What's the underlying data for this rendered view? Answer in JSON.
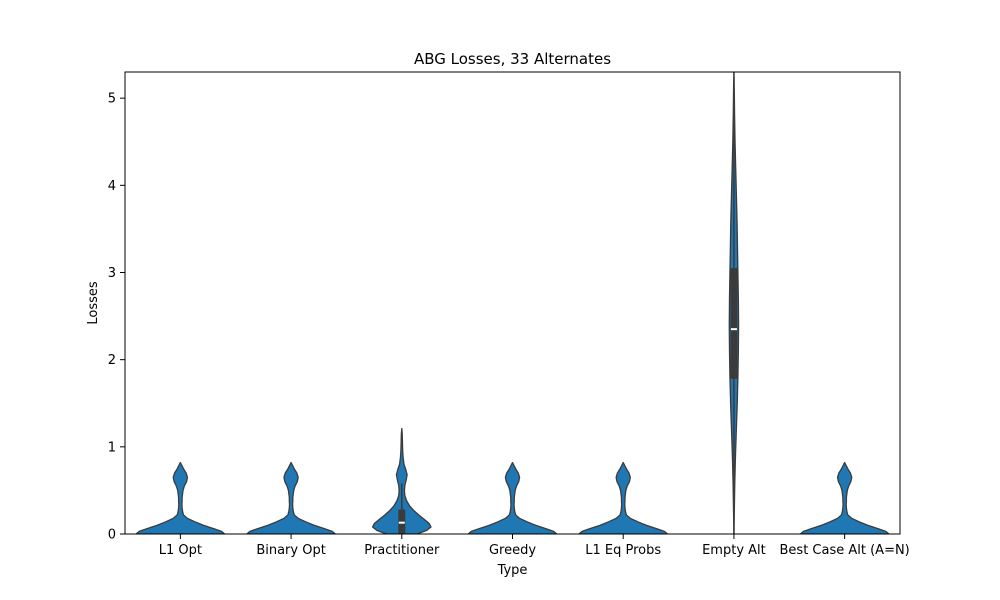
{
  "chart_data": {
    "type": "violin",
    "title": "ABG Losses, 33 Alternates",
    "xlabel": "Type",
    "ylabel": "Losses",
    "ylim": [
      0,
      5.3
    ],
    "yticks": [
      0,
      1,
      2,
      3,
      4,
      5
    ],
    "grid": false,
    "legend": "none",
    "colors": {
      "violin": "#1f77b4",
      "outline": "#3b3b3b",
      "box": "#3b3b3b",
      "median": "#ffffff"
    },
    "categories": [
      "L1 Opt",
      "Binary Opt",
      "Practitioner",
      "Greedy",
      "L1 Eq Probs",
      "Empty Alt",
      "Best Case Alt (A=N)"
    ],
    "violins": [
      {
        "category": "L1 Opt",
        "density": [
          [
            0,
            1.0
          ],
          [
            0.03,
            0.93
          ],
          [
            0.06,
            0.76
          ],
          [
            0.1,
            0.52
          ],
          [
            0.14,
            0.33
          ],
          [
            0.18,
            0.16
          ],
          [
            0.22,
            0.07
          ],
          [
            0.26,
            0.05
          ],
          [
            0.3,
            0.04
          ],
          [
            0.34,
            0.035
          ],
          [
            0.38,
            0.04
          ],
          [
            0.42,
            0.04
          ],
          [
            0.46,
            0.05
          ],
          [
            0.5,
            0.06
          ],
          [
            0.55,
            0.09
          ],
          [
            0.6,
            0.14
          ],
          [
            0.65,
            0.16
          ],
          [
            0.7,
            0.13
          ],
          [
            0.74,
            0.08
          ],
          [
            0.77,
            0.05
          ],
          [
            0.8,
            0.02
          ],
          [
            0.82,
            0.0
          ]
        ],
        "box": {
          "q1": 0.0,
          "median": 0.0,
          "q3": 0.0,
          "whisker_low": 0.0,
          "whisker_high": 0.0
        }
      },
      {
        "category": "Binary Opt",
        "density": [
          [
            0,
            1.0
          ],
          [
            0.03,
            0.93
          ],
          [
            0.06,
            0.76
          ],
          [
            0.1,
            0.52
          ],
          [
            0.14,
            0.33
          ],
          [
            0.18,
            0.16
          ],
          [
            0.22,
            0.07
          ],
          [
            0.26,
            0.05
          ],
          [
            0.3,
            0.04
          ],
          [
            0.34,
            0.035
          ],
          [
            0.38,
            0.04
          ],
          [
            0.42,
            0.04
          ],
          [
            0.46,
            0.05
          ],
          [
            0.5,
            0.06
          ],
          [
            0.55,
            0.09
          ],
          [
            0.6,
            0.14
          ],
          [
            0.65,
            0.16
          ],
          [
            0.7,
            0.13
          ],
          [
            0.74,
            0.08
          ],
          [
            0.77,
            0.05
          ],
          [
            0.8,
            0.02
          ],
          [
            0.82,
            0.0
          ]
        ],
        "box": {
          "q1": 0.0,
          "median": 0.0,
          "q3": 0.0,
          "whisker_low": 0.0,
          "whisker_high": 0.0
        }
      },
      {
        "category": "Practitioner",
        "density": [
          [
            0,
            0.34
          ],
          [
            0.04,
            0.56
          ],
          [
            0.08,
            0.66
          ],
          [
            0.12,
            0.62
          ],
          [
            0.17,
            0.5
          ],
          [
            0.22,
            0.38
          ],
          [
            0.27,
            0.27
          ],
          [
            0.32,
            0.18
          ],
          [
            0.38,
            0.11
          ],
          [
            0.44,
            0.07
          ],
          [
            0.5,
            0.06
          ],
          [
            0.56,
            0.07
          ],
          [
            0.62,
            0.1
          ],
          [
            0.68,
            0.12
          ],
          [
            0.74,
            0.09
          ],
          [
            0.8,
            0.05
          ],
          [
            0.88,
            0.03
          ],
          [
            0.96,
            0.02
          ],
          [
            1.05,
            0.015
          ],
          [
            1.15,
            0.01
          ],
          [
            1.21,
            0.0
          ]
        ],
        "box": {
          "q1": 0.0,
          "median": 0.13,
          "q3": 0.28,
          "whisker_low": 0.0,
          "whisker_high": 0.58
        }
      },
      {
        "category": "Greedy",
        "density": [
          [
            0,
            1.0
          ],
          [
            0.03,
            0.93
          ],
          [
            0.06,
            0.76
          ],
          [
            0.1,
            0.52
          ],
          [
            0.14,
            0.33
          ],
          [
            0.18,
            0.16
          ],
          [
            0.22,
            0.07
          ],
          [
            0.26,
            0.05
          ],
          [
            0.3,
            0.04
          ],
          [
            0.34,
            0.035
          ],
          [
            0.38,
            0.04
          ],
          [
            0.42,
            0.04
          ],
          [
            0.46,
            0.05
          ],
          [
            0.5,
            0.06
          ],
          [
            0.55,
            0.09
          ],
          [
            0.6,
            0.14
          ],
          [
            0.65,
            0.16
          ],
          [
            0.7,
            0.13
          ],
          [
            0.74,
            0.08
          ],
          [
            0.77,
            0.05
          ],
          [
            0.8,
            0.02
          ],
          [
            0.82,
            0.0
          ]
        ],
        "box": {
          "q1": 0.0,
          "median": 0.0,
          "q3": 0.0,
          "whisker_low": 0.0,
          "whisker_high": 0.0
        }
      },
      {
        "category": "L1 Eq Probs",
        "density": [
          [
            0,
            1.0
          ],
          [
            0.03,
            0.93
          ],
          [
            0.06,
            0.76
          ],
          [
            0.1,
            0.52
          ],
          [
            0.14,
            0.33
          ],
          [
            0.18,
            0.16
          ],
          [
            0.22,
            0.07
          ],
          [
            0.26,
            0.05
          ],
          [
            0.3,
            0.04
          ],
          [
            0.34,
            0.035
          ],
          [
            0.38,
            0.04
          ],
          [
            0.42,
            0.04
          ],
          [
            0.46,
            0.05
          ],
          [
            0.5,
            0.06
          ],
          [
            0.55,
            0.09
          ],
          [
            0.6,
            0.14
          ],
          [
            0.65,
            0.16
          ],
          [
            0.7,
            0.13
          ],
          [
            0.74,
            0.08
          ],
          [
            0.77,
            0.05
          ],
          [
            0.8,
            0.02
          ],
          [
            0.82,
            0.0
          ]
        ],
        "box": {
          "q1": 0.0,
          "median": 0.0,
          "q3": 0.0,
          "whisker_low": 0.0,
          "whisker_high": 0.0
        }
      },
      {
        "category": "Empty Alt",
        "density": [
          [
            0,
            0.0
          ],
          [
            0.3,
            0.01
          ],
          [
            0.6,
            0.02
          ],
          [
            0.9,
            0.035
          ],
          [
            1.2,
            0.055
          ],
          [
            1.5,
            0.075
          ],
          [
            1.8,
            0.09
          ],
          [
            2.1,
            0.1
          ],
          [
            2.4,
            0.105
          ],
          [
            2.7,
            0.1
          ],
          [
            3.0,
            0.09
          ],
          [
            3.3,
            0.08
          ],
          [
            3.6,
            0.07
          ],
          [
            3.9,
            0.055
          ],
          [
            4.2,
            0.04
          ],
          [
            4.5,
            0.025
          ],
          [
            4.8,
            0.015
          ],
          [
            5.1,
            0.008
          ],
          [
            5.4,
            0.0
          ]
        ],
        "box": {
          "q1": 1.78,
          "median": 2.35,
          "q3": 3.05,
          "whisker_low": 0.0,
          "whisker_high": 4.8
        }
      },
      {
        "category": "Best Case Alt (A=N)",
        "density": [
          [
            0,
            1.0
          ],
          [
            0.03,
            0.93
          ],
          [
            0.06,
            0.76
          ],
          [
            0.1,
            0.52
          ],
          [
            0.14,
            0.33
          ],
          [
            0.18,
            0.16
          ],
          [
            0.22,
            0.07
          ],
          [
            0.26,
            0.05
          ],
          [
            0.3,
            0.04
          ],
          [
            0.34,
            0.035
          ],
          [
            0.38,
            0.04
          ],
          [
            0.42,
            0.04
          ],
          [
            0.46,
            0.05
          ],
          [
            0.5,
            0.06
          ],
          [
            0.55,
            0.09
          ],
          [
            0.6,
            0.14
          ],
          [
            0.65,
            0.16
          ],
          [
            0.7,
            0.13
          ],
          [
            0.74,
            0.08
          ],
          [
            0.77,
            0.05
          ],
          [
            0.8,
            0.02
          ],
          [
            0.82,
            0.0
          ]
        ],
        "box": {
          "q1": 0.0,
          "median": 0.0,
          "q3": 0.0,
          "whisker_low": 0.0,
          "whisker_high": 0.0
        }
      }
    ]
  }
}
